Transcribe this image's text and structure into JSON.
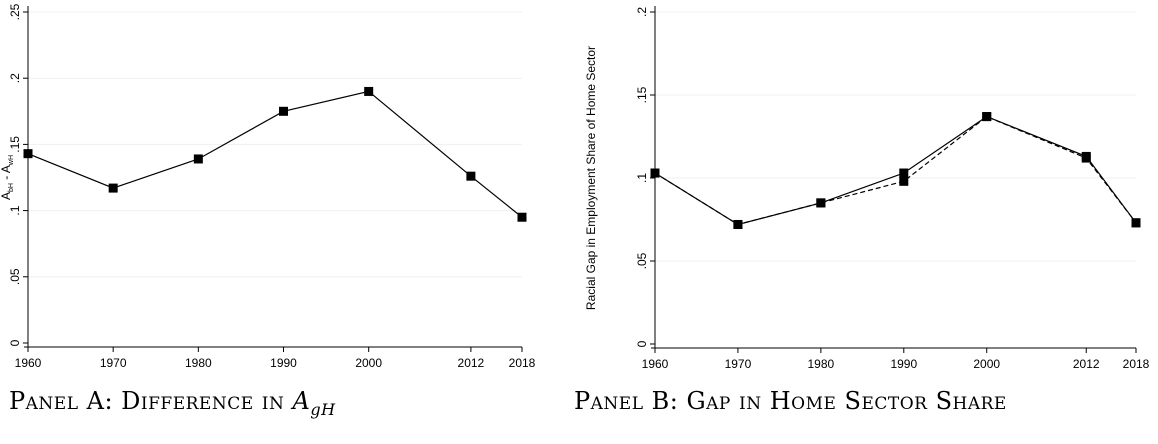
{
  "chart_data": [
    {
      "type": "line",
      "x": [
        1960,
        1970,
        1980,
        1990,
        2000,
        2012,
        2018
      ],
      "xticks": [
        "1960",
        "1970",
        "1980",
        "1990",
        "2000",
        "2012",
        "2018"
      ],
      "ylim": [
        0,
        0.25
      ],
      "yticks": [
        0,
        0.05,
        0.1,
        0.15,
        0.2,
        0.25
      ],
      "ytick_labels": [
        "0",
        ".05",
        ".1",
        ".15",
        ".2",
        ".25"
      ],
      "ylabel_main": "A",
      "ylabel_sub1": "bH",
      "ylabel_mid": " - A",
      "ylabel_sub2": "wH",
      "grid": true,
      "series": [
        {
          "values": [
            0.143,
            0.117,
            0.139,
            0.175,
            0.19,
            0.126,
            0.095
          ],
          "style": "solid",
          "color": "#000000"
        }
      ],
      "caption_text": "Panel A: Difference in ",
      "caption_math": "A",
      "caption_math_sub": "gH"
    },
    {
      "type": "line",
      "x": [
        1960,
        1970,
        1980,
        1990,
        2000,
        2012,
        2018
      ],
      "xticks": [
        "1960",
        "1970",
        "1980",
        "1990",
        "2000",
        "2012",
        "2018"
      ],
      "ylim": [
        0,
        0.2
      ],
      "yticks": [
        0,
        0.05,
        0.1,
        0.15,
        0.2
      ],
      "ytick_labels": [
        "0",
        ".05",
        ".1",
        ".15",
        ".2"
      ],
      "ylabel": "Racial Gap in Employment Share of Home Sector",
      "grid": true,
      "series": [
        {
          "values": [
            0.103,
            0.072,
            0.085,
            0.103,
            0.137,
            0.113,
            0.073
          ],
          "style": "solid",
          "color": "#000000"
        },
        {
          "values": [
            0.103,
            0.072,
            0.085,
            0.098,
            0.137,
            0.112,
            0.073
          ],
          "style": "dashed",
          "color": "#000000"
        }
      ],
      "caption_text": "Panel B: Gap in Home Sector Share"
    }
  ]
}
